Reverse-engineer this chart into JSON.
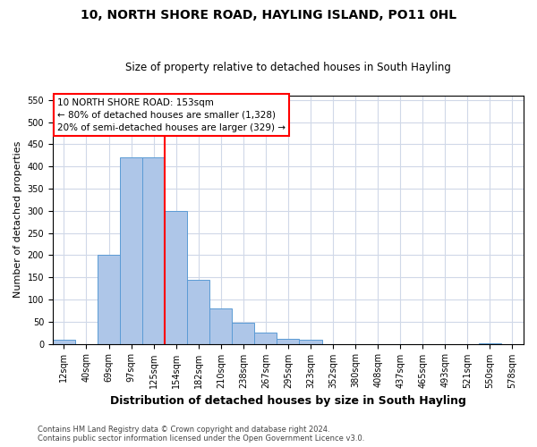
{
  "title": "10, NORTH SHORE ROAD, HAYLING ISLAND, PO11 0HL",
  "subtitle": "Size of property relative to detached houses in South Hayling",
  "xlabel": "Distribution of detached houses by size in South Hayling",
  "ylabel": "Number of detached properties",
  "bin_labels": [
    "12sqm",
    "40sqm",
    "69sqm",
    "97sqm",
    "125sqm",
    "154sqm",
    "182sqm",
    "210sqm",
    "238sqm",
    "267sqm",
    "295sqm",
    "323sqm",
    "352sqm",
    "380sqm",
    "408sqm",
    "437sqm",
    "465sqm",
    "493sqm",
    "521sqm",
    "550sqm",
    "578sqm"
  ],
  "bar_values": [
    10,
    0,
    200,
    420,
    420,
    300,
    145,
    80,
    48,
    25,
    12,
    10,
    0,
    0,
    0,
    0,
    0,
    0,
    0,
    2,
    0
  ],
  "bar_color": "#aec6e8",
  "bar_edge_color": "#5b9bd5",
  "vline_color": "red",
  "vline_position": 4.5,
  "ylim": [
    0,
    560
  ],
  "yticks": [
    0,
    50,
    100,
    150,
    200,
    250,
    300,
    350,
    400,
    450,
    500,
    550
  ],
  "annotation_title": "10 NORTH SHORE ROAD: 153sqm",
  "annotation_line1": "← 80% of detached houses are smaller (1,328)",
  "annotation_line2": "20% of semi-detached houses are larger (329) →",
  "footer_line1": "Contains HM Land Registry data © Crown copyright and database right 2024.",
  "footer_line2": "Contains public sector information licensed under the Open Government Licence v3.0.",
  "background_color": "#ffffff",
  "grid_color": "#d0d8e8",
  "title_fontsize": 10,
  "subtitle_fontsize": 8.5,
  "ylabel_fontsize": 8,
  "xlabel_fontsize": 9,
  "tick_fontsize": 7,
  "footer_fontsize": 6,
  "annot_fontsize": 7.5
}
